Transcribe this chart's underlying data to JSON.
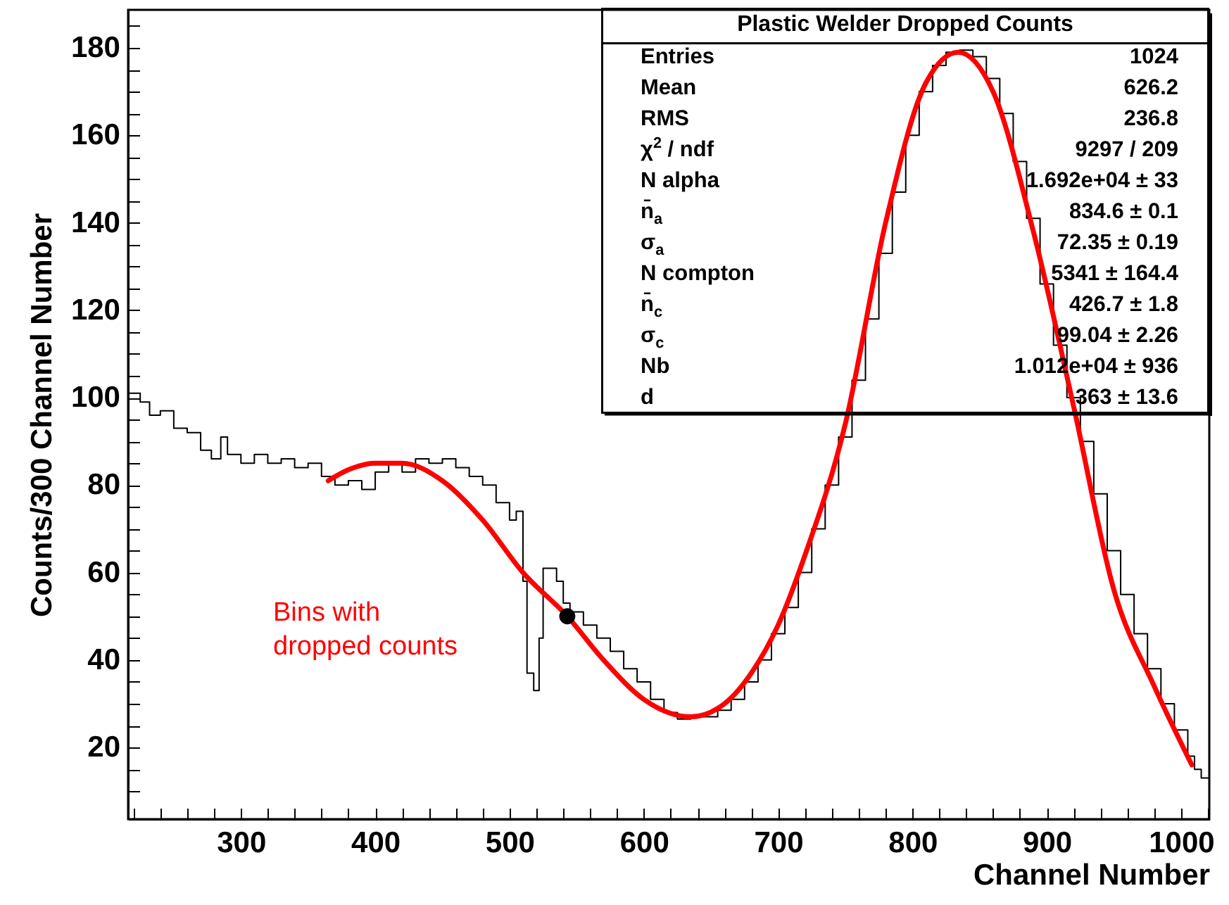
{
  "chart_data": {
    "type": "step",
    "title": "Plastic Welder Dropped Counts",
    "xlabel": "Channel Number",
    "ylabel": "Counts/300 Channel Number",
    "xlim": [
      216,
      1021
    ],
    "ylim": [
      3.6,
      188.7
    ],
    "xticks": [
      {
        "value": 220,
        "label": null
      },
      {
        "value": 240,
        "label": null
      },
      {
        "value": 260,
        "label": null
      },
      {
        "value": 280,
        "label": null
      },
      300,
      {
        "value": 320,
        "label": null
      },
      {
        "value": 340,
        "label": null
      },
      {
        "value": 360,
        "label": null
      },
      {
        "value": 380,
        "label": null
      },
      400,
      {
        "value": 420,
        "label": null
      },
      {
        "value": 440,
        "label": null
      },
      {
        "value": 460,
        "label": null
      },
      {
        "value": 480,
        "label": null
      },
      500,
      {
        "value": 520,
        "label": null
      },
      {
        "value": 540,
        "label": null
      },
      {
        "value": 560,
        "label": null
      },
      {
        "value": 580,
        "label": null
      },
      600,
      {
        "value": 620,
        "label": null
      },
      {
        "value": 640,
        "label": null
      },
      {
        "value": 660,
        "label": null
      },
      {
        "value": 680,
        "label": null
      },
      700,
      {
        "value": 720,
        "label": null
      },
      {
        "value": 740,
        "label": null
      },
      {
        "value": 760,
        "label": null
      },
      {
        "value": 780,
        "label": null
      },
      800,
      {
        "value": 820,
        "label": null
      },
      {
        "value": 840,
        "label": null
      },
      {
        "value": 860,
        "label": null
      },
      {
        "value": 880,
        "label": null
      },
      900,
      {
        "value": 920,
        "label": null
      },
      {
        "value": 940,
        "label": null
      },
      {
        "value": 960,
        "label": null
      },
      {
        "value": 980,
        "label": null
      },
      1000,
      {
        "value": 1020,
        "label": null
      }
    ],
    "yticks": [
      {
        "value": 10,
        "label": null
      },
      {
        "value": 15,
        "label": null
      },
      20,
      {
        "value": 25,
        "label": null
      },
      {
        "value": 30,
        "label": null
      },
      {
        "value": 35,
        "label": null
      },
      40,
      {
        "value": 45,
        "label": null
      },
      {
        "value": 50,
        "label": null
      },
      {
        "value": 55,
        "label": null
      },
      60,
      {
        "value": 65,
        "label": null
      },
      {
        "value": 70,
        "label": null
      },
      {
        "value": 75,
        "label": null
      },
      80,
      {
        "value": 85,
        "label": null
      },
      {
        "value": 90,
        "label": null
      },
      {
        "value": 95,
        "label": null
      },
      100,
      {
        "value": 105,
        "label": null
      },
      {
        "value": 110,
        "label": null
      },
      {
        "value": 115,
        "label": null
      },
      120,
      {
        "value": 125,
        "label": null
      },
      {
        "value": 130,
        "label": null
      },
      {
        "value": 135,
        "label": null
      },
      140,
      {
        "value": 145,
        "label": null
      },
      {
        "value": 150,
        "label": null
      },
      {
        "value": 155,
        "label": null
      },
      160,
      {
        "value": 165,
        "label": null
      },
      {
        "value": 170,
        "label": null
      },
      {
        "value": 175,
        "label": null
      },
      180,
      {
        "value": 185,
        "label": null
      }
    ],
    "grid": false,
    "series": [
      {
        "color": "#000000",
        "x": [
          216,
          225,
          232,
          240,
          250,
          260,
          270,
          278,
          285,
          290,
          300,
          310,
          320,
          330,
          340,
          350,
          360,
          370,
          380,
          390,
          400,
          410,
          420,
          430,
          440,
          450,
          460,
          470,
          480,
          490,
          500,
          505,
          510,
          513,
          518,
          522,
          525,
          535,
          540,
          545,
          555,
          565,
          575,
          585,
          595,
          605,
          615,
          625,
          635,
          645,
          655,
          665,
          675,
          685,
          695,
          705,
          715,
          725,
          735,
          745,
          755,
          765,
          775,
          785,
          795,
          805,
          815,
          825,
          835,
          845,
          855,
          865,
          875,
          885,
          895,
          905,
          915,
          925,
          935,
          945,
          955,
          965,
          975,
          985,
          995,
          1005,
          1010,
          1015,
          1021
        ],
        "values": [
          101,
          99,
          96,
          97,
          93,
          92,
          88,
          86,
          91,
          87,
          85,
          87,
          85,
          86,
          84,
          85,
          82,
          80,
          81,
          79,
          83,
          85,
          83,
          86,
          85,
          86,
          84,
          82,
          80,
          76,
          72,
          74,
          58,
          37,
          33,
          45,
          61,
          58,
          53,
          51,
          48,
          45,
          42,
          38,
          35,
          31,
          28,
          26.5,
          27,
          27,
          28.5,
          31,
          35,
          40,
          46,
          52,
          60,
          70,
          80,
          91,
          104,
          118,
          133,
          147,
          160,
          170,
          176,
          179,
          179.5,
          178,
          173,
          165,
          154,
          141,
          126,
          112,
          100,
          90,
          78,
          65,
          55,
          46,
          38,
          30,
          24,
          18,
          15,
          13,
          12
        ]
      },
      {
        "type": "line",
        "color": "#ff0000",
        "x": [
          365,
          380,
          400,
          420,
          450,
          480,
          510,
          543,
          570,
          600,
          635,
          660,
          680,
          700,
          720,
          750,
          780,
          810,
          834,
          860,
          890,
          920,
          950,
          980,
          1008
        ],
        "values": [
          81,
          83.5,
          85,
          85,
          81,
          72,
          60,
          50,
          40,
          31,
          27,
          30,
          37,
          48,
          64,
          94,
          140,
          172,
          179,
          170,
          138,
          98,
          56,
          34,
          16
        ]
      },
      {
        "type": "scatter",
        "marker": "circle",
        "color": "#000000",
        "x": [
          543
        ],
        "values": [
          50
        ]
      }
    ],
    "annotations": [
      "Bins with dropped counts",
      "Entries",
      "1024",
      "Mean",
      "626.2",
      "RMS",
      "236.8",
      "χ$^{2}$ / ndf",
      "9297 / 209",
      "N alpha",
      "1.692e+04 ± 33",
      "n̄$_{a}$",
      "834.6 ± 0.1",
      "σ$_{a}$",
      "72.35 ± 0.19",
      "N compton",
      "5341 ± 164.4",
      "n̄$_{c}$",
      "426.7 ± 1.8",
      "σ$_{c}$",
      "99.04 ± 2.26",
      "Nb",
      "1.012e+04 ± 936",
      "d",
      "363 ± 13.6"
    ]
  }
}
